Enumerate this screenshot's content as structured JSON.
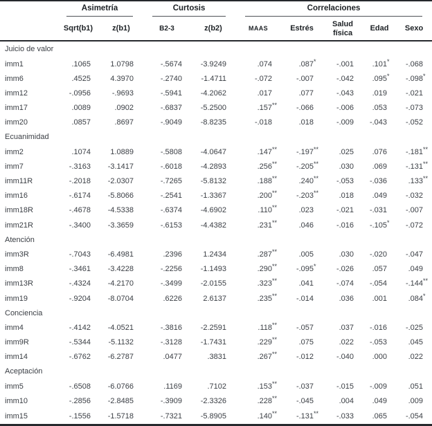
{
  "colors": {
    "text": "#3a3e44",
    "header_text": "#1c2024",
    "border": "#25282c"
  },
  "table": {
    "col_groups": [
      {
        "label": "Asimetría",
        "span": 2
      },
      {
        "label": "Curtosis",
        "span": 2
      },
      {
        "label": "Correlaciones",
        "span": 5
      }
    ],
    "columns": [
      "Sqrt(b1)",
      "z(b1)",
      "B2-3",
      "z(b2)",
      "MAAS",
      "Estrés",
      "Salud física",
      "Edad",
      "Sexo"
    ],
    "sections": [
      {
        "title": "Juicio de valor",
        "rows": [
          {
            "label": "imm1",
            "values": [
              ".1065",
              "1.0798",
              "-.5674",
              "-3.9249",
              ".074",
              ".087*",
              "-.001",
              ".101*",
              "-.068"
            ]
          },
          {
            "label": "imm6",
            "values": [
              ".4525",
              "4.3970",
              "-.2740",
              "-1.4711",
              "-.072",
              "-.007",
              "-.042",
              ".095*",
              "-.098*"
            ]
          },
          {
            "label": "imm12",
            "values": [
              "-.0956",
              "-.9693",
              "-.5941",
              "-4.2062",
              ".017",
              ".077",
              "-.043",
              ".019",
              "-.021"
            ]
          },
          {
            "label": "imm17",
            "values": [
              ".0089",
              ".0902",
              "-.6837",
              "-5.2500",
              ".157**",
              "-.066",
              "-.006",
              ".053",
              "-.073"
            ]
          },
          {
            "label": "imm20",
            "values": [
              ".0857",
              ".8697",
              "-.9049",
              "-8.8235",
              "-.018",
              ".018",
              "-.009",
              "-.043",
              "-.052"
            ]
          }
        ]
      },
      {
        "title": "Ecuanimidad",
        "rows": [
          {
            "label": "imm2",
            "values": [
              ".1074",
              "1.0889",
              "-.5808",
              "-4.0647",
              ".147**",
              "-.197**",
              ".025",
              ".076",
              "-.181**"
            ]
          },
          {
            "label": "imm7",
            "values": [
              "-.3163",
              "-3.1417",
              "-.6018",
              "-4.2893",
              ".256**",
              "-.205**",
              ".030",
              ".069",
              "-.131**"
            ]
          },
          {
            "label": "imm11R",
            "values": [
              "-.2018",
              "-2.0307",
              "-.7265",
              "-5.8132",
              ".188**",
              ".240**",
              "-.053",
              "-.036",
              ".133**"
            ]
          },
          {
            "label": "imm16",
            "values": [
              "-.6174",
              "-5.8066",
              "-.2541",
              "-1.3367",
              ".200**",
              "-.203**",
              ".018",
              ".049",
              "-.032"
            ]
          },
          {
            "label": "imm18R",
            "values": [
              "-.4678",
              "-4.5338",
              "-.6374",
              "-4.6902",
              ".110**",
              ".023",
              "-.021",
              "-.031",
              "-.007"
            ]
          },
          {
            "label": "imm21R",
            "values": [
              "-.3400",
              "-3.3659",
              "-.6153",
              "-4.4382",
              ".231**",
              ".046",
              "-.016",
              "-.105*",
              "-.072"
            ]
          }
        ]
      },
      {
        "title": "Atención",
        "rows": [
          {
            "label": "imm3R",
            "values": [
              "-.7043",
              "-6.4981",
              ".2396",
              "1.2434",
              ".287**",
              ".005",
              ".030",
              "-.020",
              "-.047"
            ]
          },
          {
            "label": "imm8",
            "values": [
              "-.3461",
              "-3.4228",
              "-.2256",
              "-1.1493",
              ".290**",
              "-.095*",
              "-.026",
              ".057",
              ".049"
            ]
          },
          {
            "label": "imm13R",
            "values": [
              "-.4324",
              "-4.2170",
              "-.3499",
              "-2.0155",
              ".323**",
              ".041",
              "-.074",
              "-.054",
              "-.144**"
            ]
          },
          {
            "label": "imm19",
            "values": [
              "-.9204",
              "-8.0704",
              ".6226",
              "2.6137",
              ".235**",
              "-.014",
              ".036",
              ".001",
              ".084*"
            ]
          }
        ]
      },
      {
        "title": "Conciencia",
        "rows": [
          {
            "label": "imm4",
            "values": [
              "-.4142",
              "-4.0521",
              "-.3816",
              "-2.2591",
              ".118**",
              "-.057",
              ".037",
              "-.016",
              "-.025"
            ]
          },
          {
            "label": "imm9R",
            "values": [
              "-.5344",
              "-5.1132",
              "-.3128",
              "-1.7431",
              ".229**",
              ".075",
              ".022",
              "-.053",
              ".045"
            ]
          },
          {
            "label": "imm14",
            "values": [
              "-.6762",
              "-6.2787",
              ".0477",
              ".3831",
              ".267**",
              "-.012",
              "-.040",
              ".000",
              ".022"
            ]
          }
        ]
      },
      {
        "title": "Aceptación",
        "rows": [
          {
            "label": "imm5",
            "values": [
              "-.6508",
              "-6.0766",
              ".1169",
              ".7102",
              ".153**",
              "-.037",
              "-.015",
              "-.009",
              ".051"
            ]
          },
          {
            "label": "imm10",
            "values": [
              "-.2856",
              "-2.8485",
              "-.3909",
              "-2.3326",
              ".228**",
              "-.045",
              ".004",
              ".049",
              ".009"
            ]
          },
          {
            "label": "imm15",
            "values": [
              "-.1556",
              "-1.5718",
              "-.7321",
              "-5.8905",
              ".140**",
              "-.131**",
              "-.033",
              ".065",
              "-.054"
            ]
          }
        ]
      }
    ]
  }
}
